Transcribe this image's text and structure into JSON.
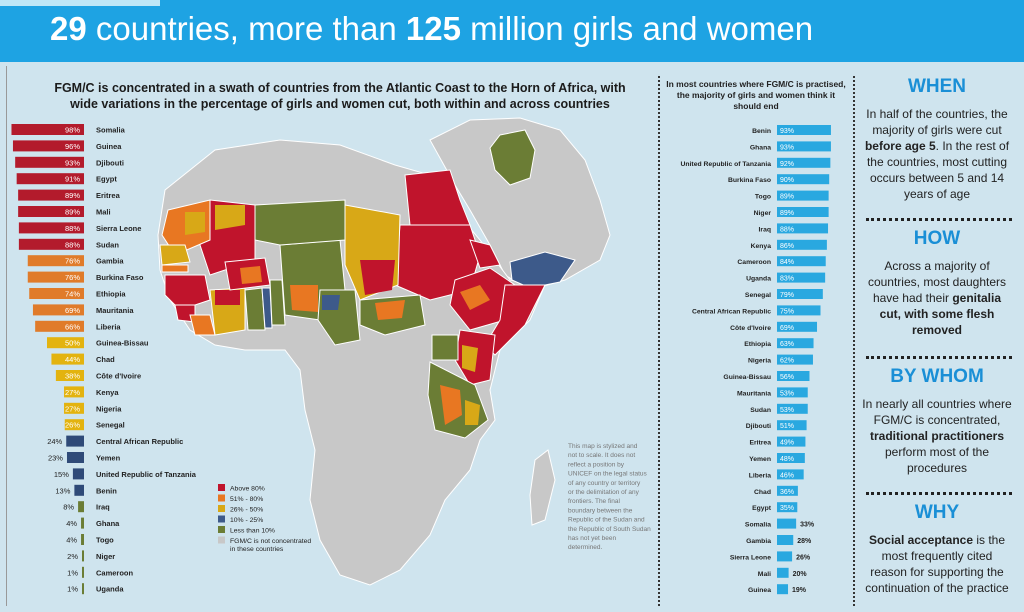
{
  "header": {
    "title_num1": "29",
    "title_mid": " countries, more than ",
    "title_num2": "125",
    "title_end": " million girls and women"
  },
  "section_heading": "FGM/C is concentrated in a swath of countries from the Atlantic Coast to the Horn of Africa, with wide variations in the percentage of girls and women cut, both within and across countries",
  "map": {
    "legend": [
      {
        "label": "Above 80%",
        "color": "#c0142c"
      },
      {
        "label": "51% - 80%",
        "color": "#e87722"
      },
      {
        "label": "26% - 50%",
        "color": "#d8a817"
      },
      {
        "label": "10% - 25%",
        "color": "#3d5a8a"
      },
      {
        "label": "Less than 10%",
        "color": "#6b7d35"
      },
      {
        "label": "FGM/C is not concentrated in these countries",
        "color": "#c8c8c8"
      }
    ],
    "disclaimer": "This map is stylized and not to scale. It does not reflect a position by UNICEF on the legal status of any country or territory or the delimitation of any frontiers. The final boundary between the Republic of the Sudan and the Republic of South Sudan has not yet been determined."
  },
  "chart_data": [
    {
      "type": "bar",
      "orientation": "horizontal",
      "xlim": [
        0,
        100
      ],
      "categories": [
        "Somalia",
        "Guinea",
        "Djibouti",
        "Egypt",
        "Eritrea",
        "Mali",
        "Sierra Leone",
        "Sudan",
        "Gambia",
        "Burkina Faso",
        "Ethiopia",
        "Mauritania",
        "Liberia",
        "Guinea-Bissau",
        "Chad",
        "Côte d'Ivoire",
        "Kenya",
        "Nigeria",
        "Senegal",
        "Central African Republic",
        "Yemen",
        "United Republic of Tanzania",
        "Benin",
        "Iraq",
        "Ghana",
        "Togo",
        "Niger",
        "Cameroon",
        "Uganda"
      ],
      "values": [
        98,
        96,
        93,
        91,
        89,
        89,
        88,
        88,
        76,
        76,
        74,
        69,
        66,
        50,
        44,
        38,
        27,
        27,
        26,
        24,
        23,
        15,
        13,
        8,
        4,
        4,
        2,
        1,
        1
      ],
      "labels": [
        "98%",
        "96%",
        "93%",
        "91%",
        "89%",
        "89%",
        "88%",
        "88%",
        "76%",
        "76%",
        "74%",
        "69%",
        "66%",
        "50%",
        "44%",
        "38%",
        "27%",
        "27%",
        "26%",
        "24%",
        "23%",
        "15%",
        "13%",
        "8%",
        "4%",
        "4%",
        "2%",
        "1%",
        "1%"
      ],
      "colors": [
        "#b31b2c",
        "#b31b2c",
        "#b31b2c",
        "#b31b2c",
        "#b31b2c",
        "#b31b2c",
        "#b31b2c",
        "#b31b2c",
        "#e07b2a",
        "#e07b2a",
        "#e07b2a",
        "#e07b2a",
        "#e07b2a",
        "#e3b30f",
        "#e3b30f",
        "#e3b30f",
        "#e3b30f",
        "#e3b30f",
        "#e3b30f",
        "#2f4a78",
        "#2f4a78",
        "#2f4a78",
        "#2f4a78",
        "#6b7d35",
        "#6b7d35",
        "#6b7d35",
        "#6b7d35",
        "#6b7d35",
        "#6b7d35"
      ]
    },
    {
      "type": "bar",
      "orientation": "horizontal",
      "title": "In most countries where FGM/C is practised, the majority of girls and women think it should end",
      "xlim": [
        0,
        100
      ],
      "categories": [
        "Benin",
        "Ghana",
        "United Republic of Tanzania",
        "Burkina Faso",
        "Togo",
        "Niger",
        "Iraq",
        "Kenya",
        "Cameroon",
        "Uganda",
        "Senegal",
        "Central African Republic",
        "Côte d'Ivoire",
        "Ethiopia",
        "Nigeria",
        "Guinea-Bissau",
        "Mauritania",
        "Sudan",
        "Djibouti",
        "Eritrea",
        "Yemen",
        "Liberia",
        "Chad",
        "Egypt",
        "Somalia",
        "Gambia",
        "Sierra Leone",
        "Mali",
        "Guinea"
      ],
      "values": [
        93,
        93,
        92,
        90,
        89,
        89,
        88,
        86,
        84,
        83,
        79,
        75,
        69,
        63,
        62,
        56,
        53,
        53,
        51,
        49,
        48,
        46,
        36,
        35,
        33,
        28,
        26,
        20,
        19
      ],
      "labels": [
        "93%",
        "93%",
        "92%",
        "90%",
        "89%",
        "89%",
        "88%",
        "86%",
        "84%",
        "83%",
        "79%",
        "75%",
        "69%",
        "63%",
        "62%",
        "56%",
        "53%",
        "53%",
        "51%",
        "49%",
        "48%",
        "46%",
        "36%",
        "35%",
        "33%",
        "28%",
        "26%",
        "20%",
        "19%"
      ],
      "color": "#29a8e0"
    }
  ],
  "sidebar": [
    {
      "heading": "WHEN",
      "pre": "In half of the countries, the majority of girls were cut ",
      "bold": "before age 5",
      "post": ". In the rest of the countries, most cutting occurs between 5 and 14 years of age"
    },
    {
      "heading": "HOW",
      "pre": "Across a majority of countries, most daughters have had their ",
      "bold": "genitalia cut, with some flesh removed",
      "post": ""
    },
    {
      "heading": "BY WHOM",
      "pre": "In nearly all countries where FGM/C is concentrated, ",
      "bold": "traditional practitioners",
      "post": " perform most of the procedures"
    },
    {
      "heading": "WHY",
      "pre": "",
      "bold": "Social acceptance",
      "post": " is the most frequently cited reason for supporting the continuation of the practice"
    }
  ]
}
